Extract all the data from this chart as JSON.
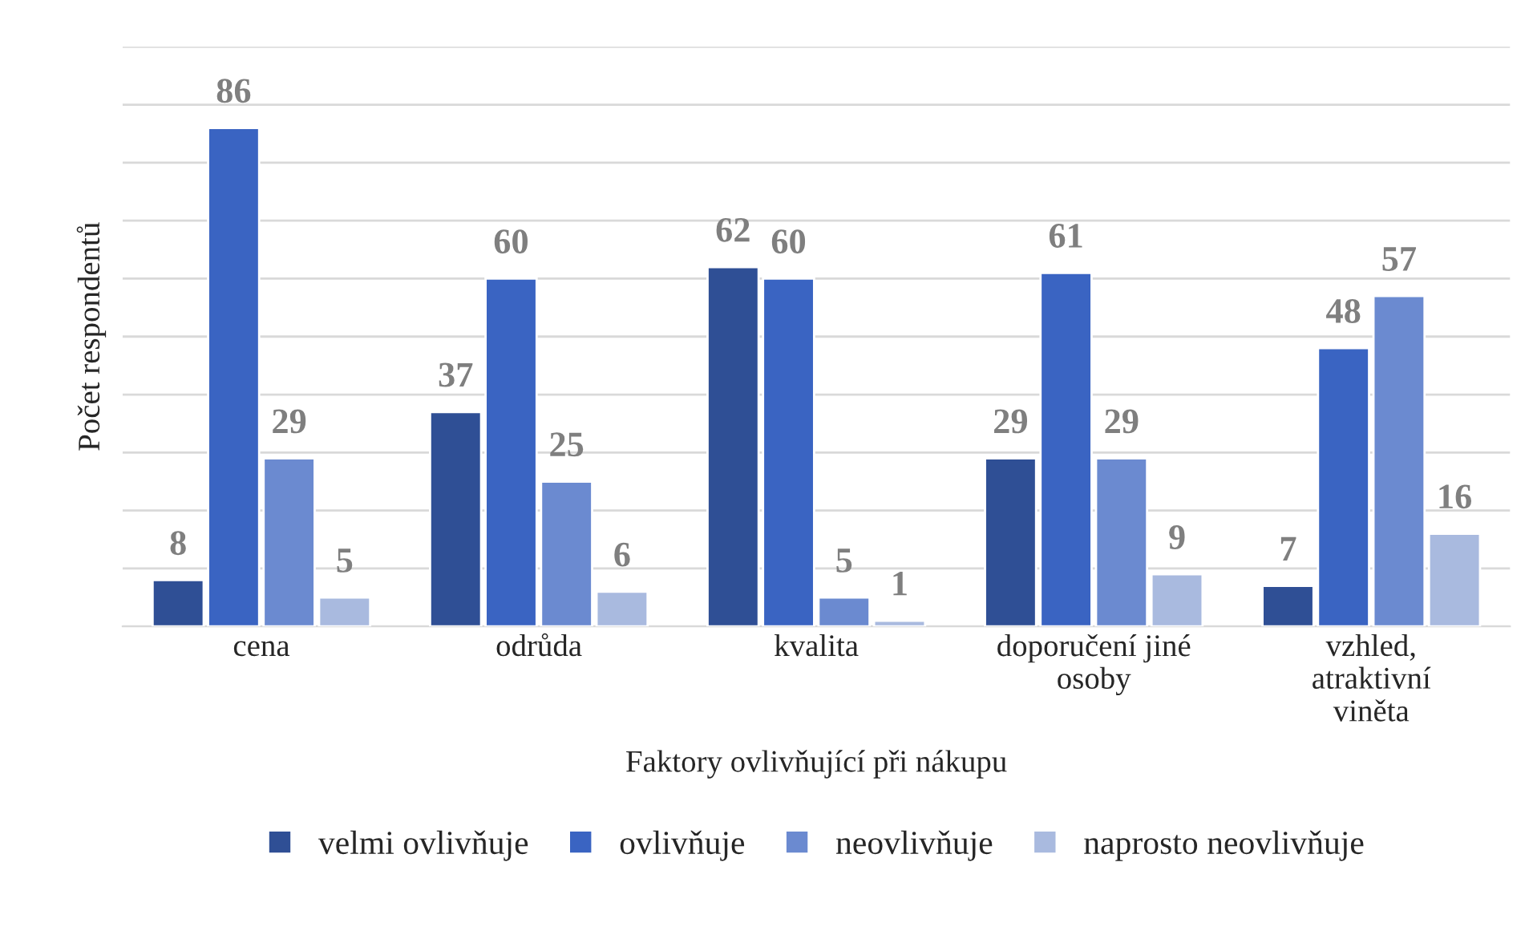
{
  "chart_data": {
    "type": "bar",
    "xlabel": "Faktory ovlivňující při nákupu",
    "ylabel": "Počet respondentů",
    "categories": [
      "cena",
      "odrůda",
      "kvalita",
      "doporučení jiné osoby",
      "vzhled, atraktivní viněta"
    ],
    "series": [
      {
        "name": "velmi ovlivňuje",
        "color": "#2f4f95",
        "values": [
          8,
          37,
          62,
          29,
          7
        ]
      },
      {
        "name": "ovlivňuje",
        "color": "#3a64c2",
        "values": [
          86,
          60,
          60,
          61,
          48
        ]
      },
      {
        "name": "neovlivňuje",
        "color": "#6b8ad0",
        "values": [
          29,
          25,
          5,
          29,
          57
        ]
      },
      {
        "name": "naprosto neovlivňuje",
        "color": "#a9badf",
        "values": [
          5,
          6,
          1,
          9,
          16
        ]
      }
    ],
    "ylim": [
      0,
      100
    ],
    "yticks": [
      {
        "value": 0,
        "label": null
      },
      {
        "value": 10,
        "label": null
      },
      {
        "value": 20,
        "label": null
      },
      {
        "value": 30,
        "label": null
      },
      {
        "value": 40,
        "label": null
      },
      {
        "value": 50,
        "label": null
      },
      {
        "value": 60,
        "label": null
      },
      {
        "value": 70,
        "label": null
      },
      {
        "value": 80,
        "label": null
      },
      {
        "value": 90,
        "label": null
      },
      {
        "value": 100,
        "label": null
      }
    ],
    "grid": "y",
    "legend": "bottom",
    "data_labels": true
  }
}
